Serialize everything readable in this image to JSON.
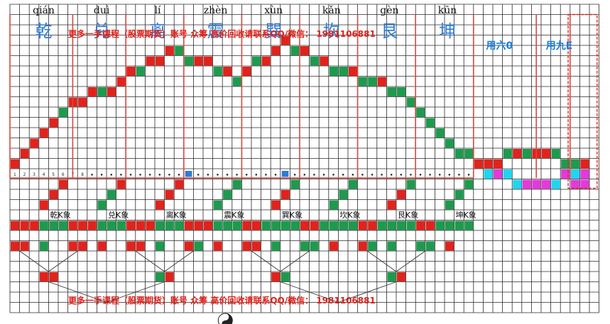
{
  "trigrams": [
    {
      "pinyin": "qián",
      "hanzi": "乾",
      "label": "乾K象"
    },
    {
      "pinyin": "duì",
      "hanzi": "兑",
      "label": "兑K象"
    },
    {
      "pinyin": "lí",
      "hanzi": "离",
      "label": "离K象"
    },
    {
      "pinyin": "zhèn",
      "hanzi": "震",
      "label": "震K象"
    },
    {
      "pinyin": "xùn",
      "hanzi": "巽",
      "label": "巽K象"
    },
    {
      "pinyin": "kǎn",
      "hanzi": "坎",
      "label": "坎K象"
    },
    {
      "pinyin": "gèn",
      "hanzi": "艮",
      "label": "艮K象"
    },
    {
      "pinyin": "kūn",
      "hanzi": "坤",
      "label": "坤K象"
    }
  ],
  "extra_labels": [
    "用六0",
    "用九E"
  ],
  "watermark_top": "更多一手课程（股票期货）账号 众筹 高价回收请联系QQ/微信： 1981106881",
  "watermark_bottom": "更多一手课程（股票期货）账号 众筹 高价回收请联系QQ/微信： 1981106881",
  "index_numbers": [
    "1",
    "2",
    "3",
    "4",
    "5",
    "6",
    "7",
    "8"
  ],
  "colors": {
    "red": "#e0231c",
    "green": "#1e9a4e",
    "grid": "#2a2a2a",
    "divider": "#d9473f",
    "blue_text": "#2e7dd6",
    "cyan": "#1fd6f0",
    "magenta": "#e33ad9",
    "blue_cell": "#2f7bd8",
    "dashed_box": "#e0231c"
  }
}
